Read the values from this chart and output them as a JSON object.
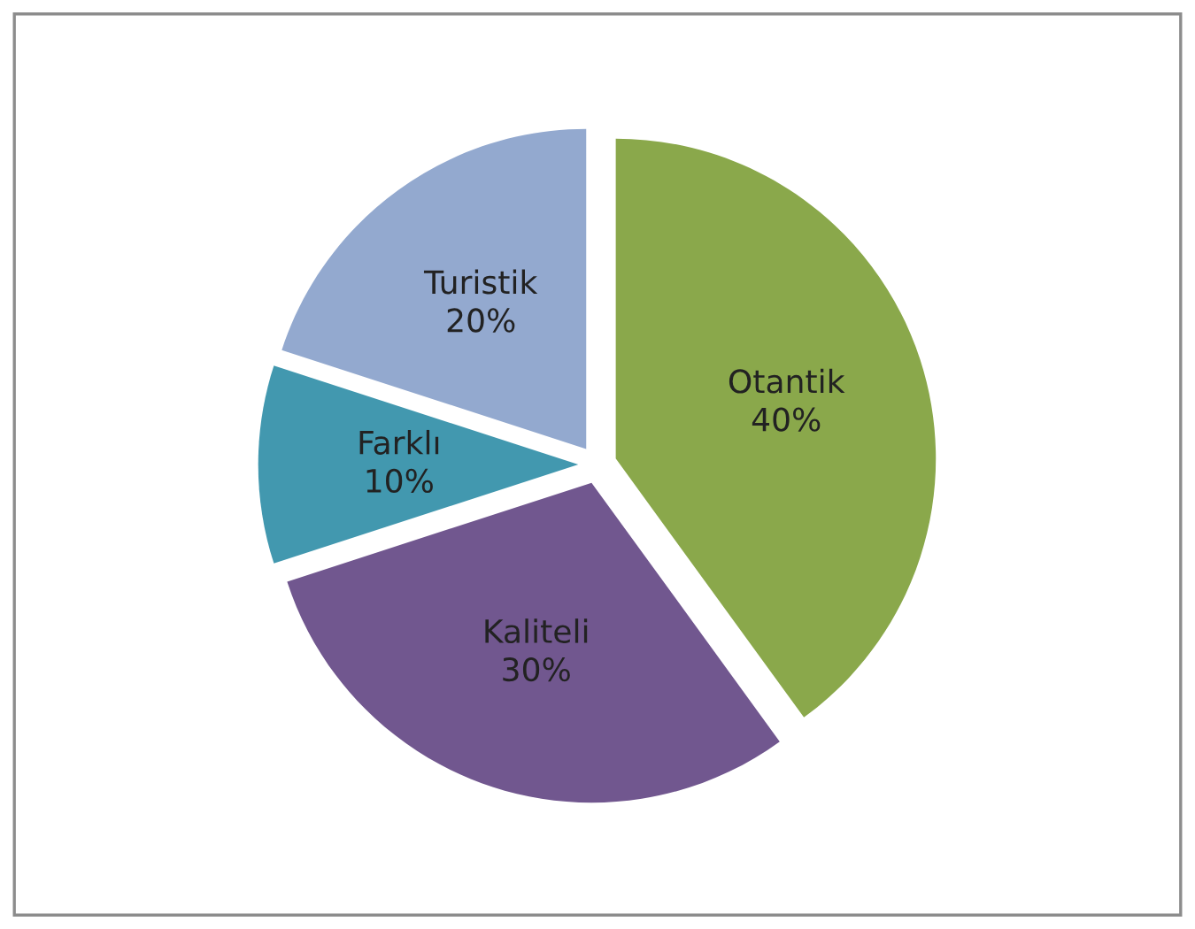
{
  "chart_data": {
    "type": "pie",
    "categories": [
      "Otantik",
      "Kaliteli",
      "Farklı",
      "Turistik"
    ],
    "values": [
      40,
      30,
      10,
      20
    ],
    "value_labels": [
      "40%",
      "30%",
      "10%",
      "20%"
    ],
    "colors": [
      "#8aa84b",
      "#71578f",
      "#4298af",
      "#93a9cf"
    ],
    "legend": false
  }
}
